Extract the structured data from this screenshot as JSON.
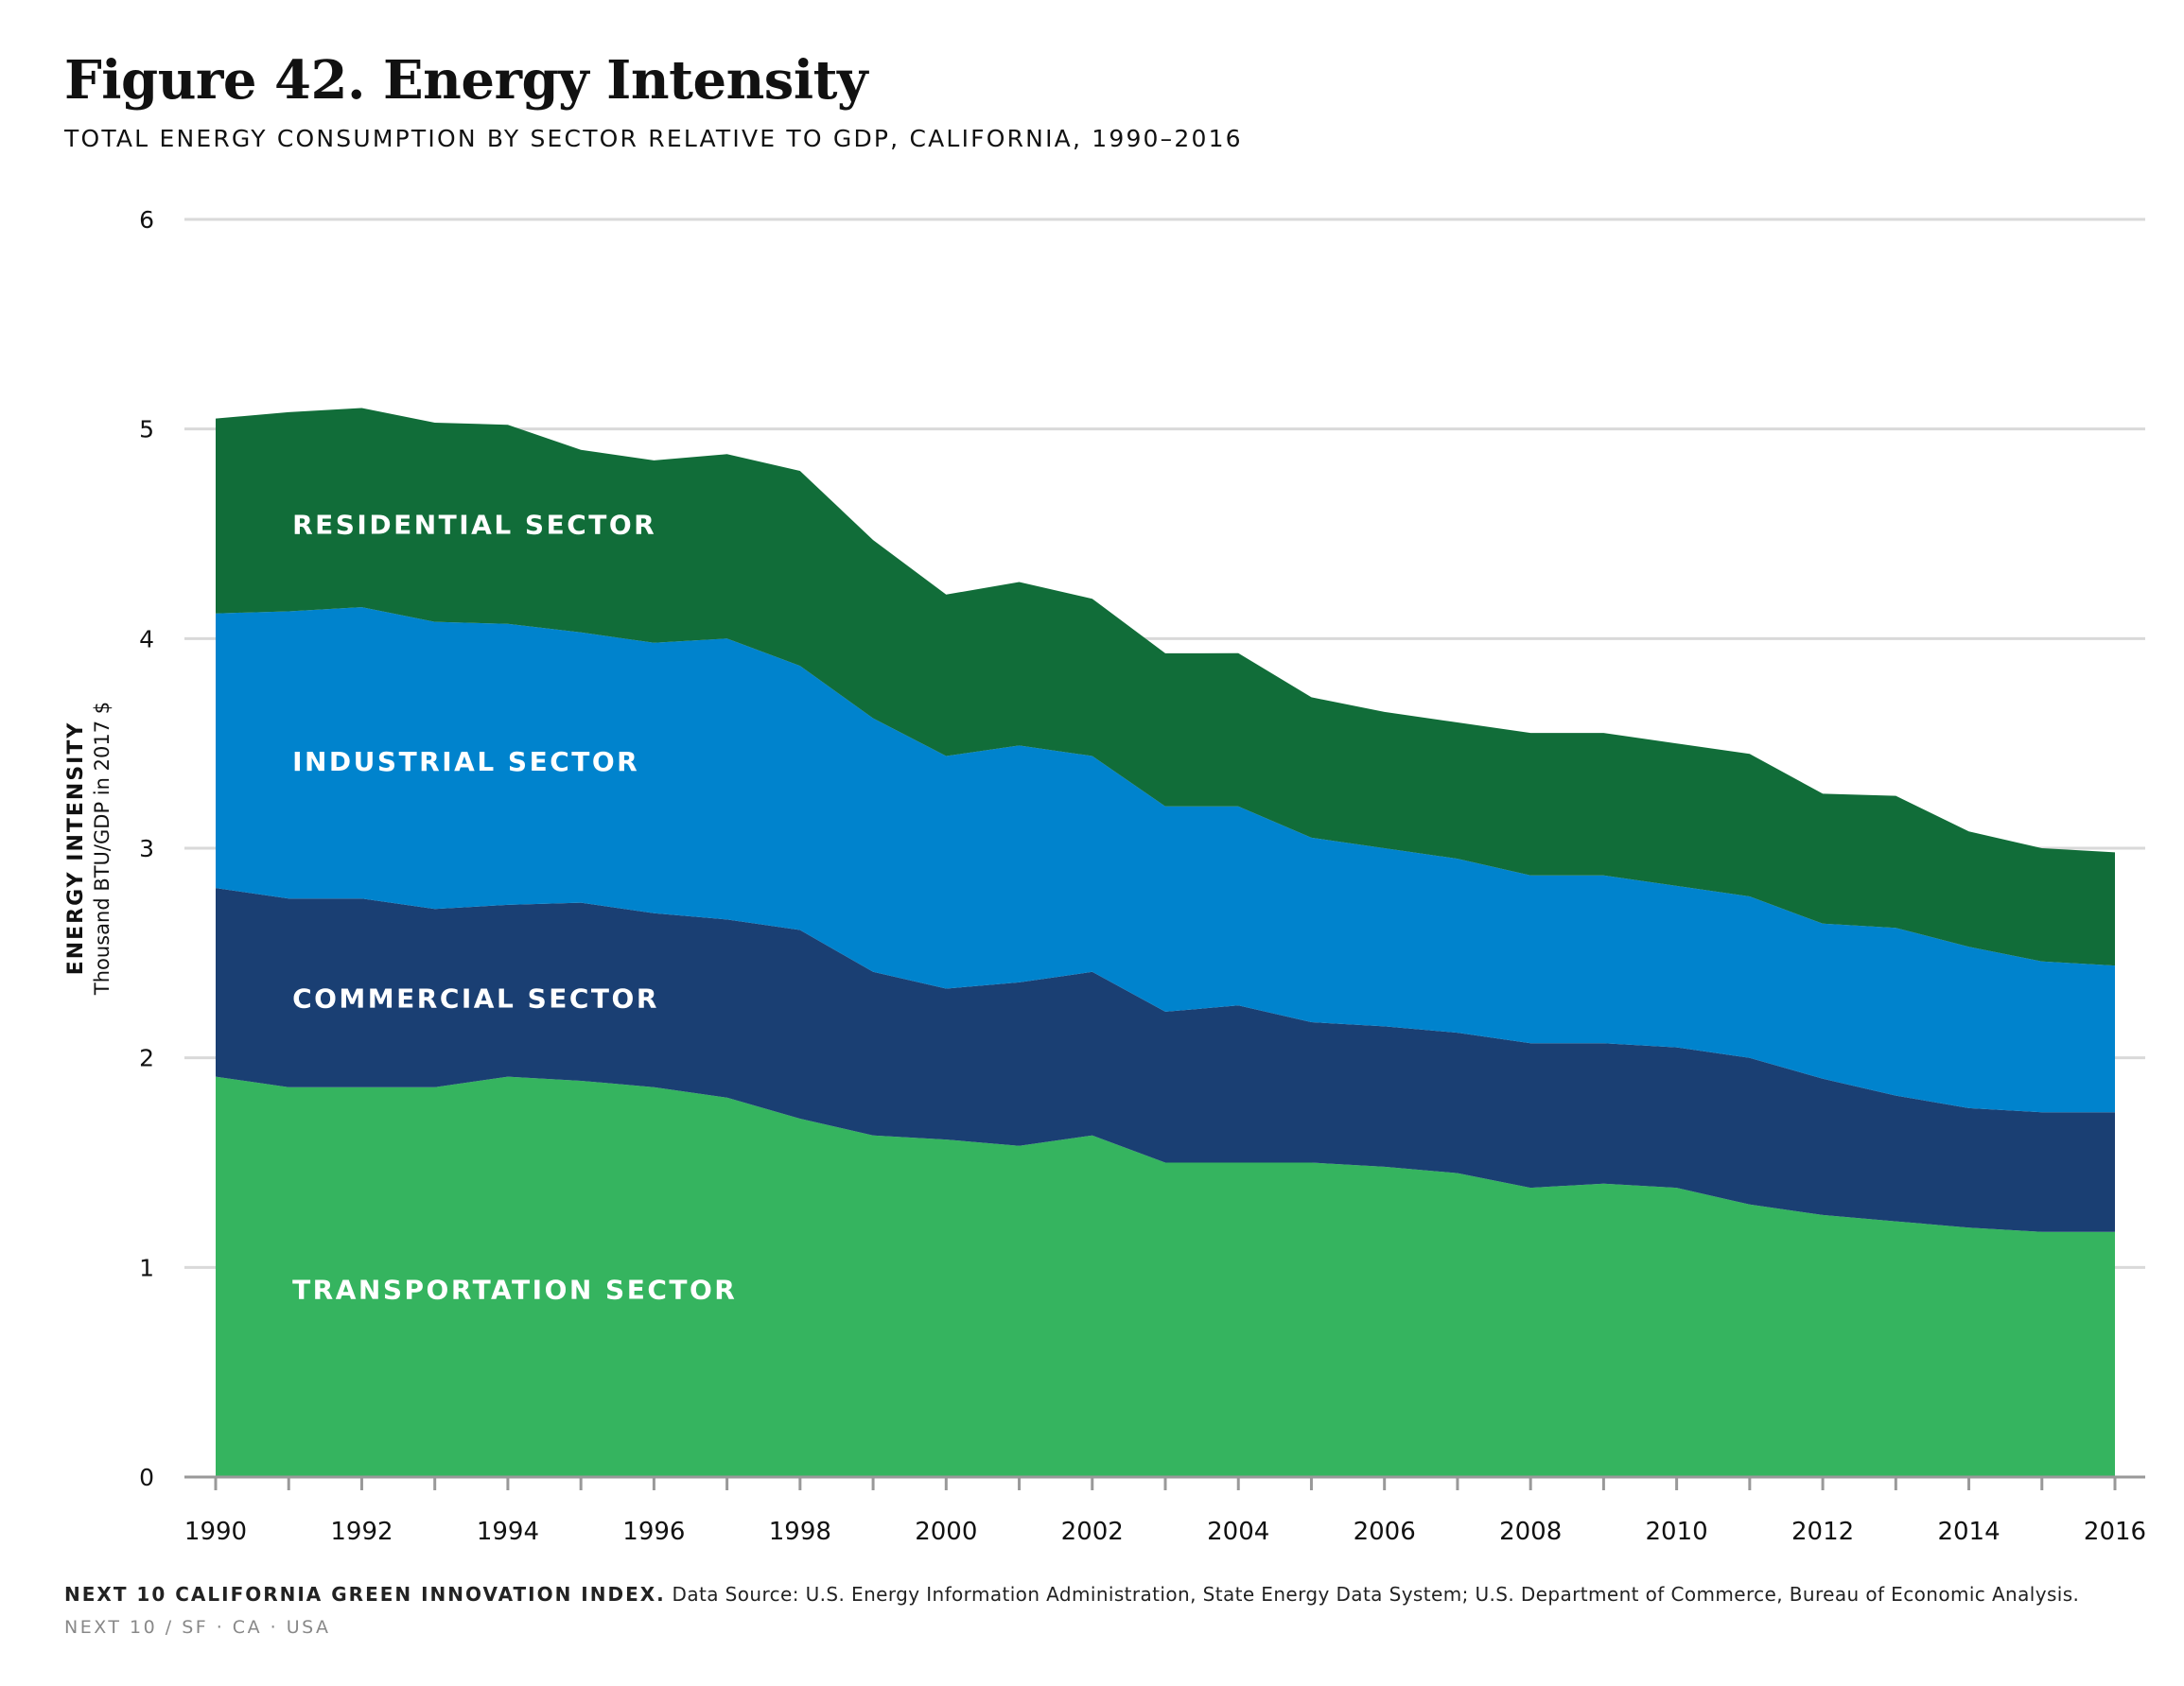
{
  "title": "Figure 42. Energy Intensity",
  "subtitle": "TOTAL ENERGY CONSUMPTION BY SECTOR RELATIVE TO GDP, CALIFORNIA, 1990–2016",
  "footer": {
    "org": "NEXT 10 CALIFORNIA GREEN INNOVATION INDEX.",
    "source": " Data Source: U.S. Energy Information Administration, State Energy Data System; U.S. Department of Commerce, Bureau of Economic Analysis.",
    "brand": "NEXT 10 / SF · CA · USA"
  },
  "colors": {
    "transportation": "#35b45f",
    "commercial": "#1a3f73",
    "industrial": "#0083cd",
    "residential": "#116d39",
    "grid": "#d9d9d9",
    "axis": "#999999"
  },
  "chart_data": {
    "type": "area",
    "stacked": true,
    "title": "Figure 42. Energy Intensity",
    "subtitle": "TOTAL ENERGY CONSUMPTION BY SECTOR RELATIVE TO GDP, CALIFORNIA, 1990–2016",
    "ylabel": "ENERGY INTENSITY",
    "ylabel_sub": "Thousand BTU/GDP in 2017 $",
    "ylim": [
      0,
      6
    ],
    "yticks": [
      "0",
      "1",
      "2",
      "3",
      "4",
      "5",
      "6"
    ],
    "grid": true,
    "x": [
      1990,
      1991,
      1992,
      1993,
      1994,
      1995,
      1996,
      1997,
      1998,
      1999,
      2000,
      2001,
      2002,
      2003,
      2004,
      2005,
      2006,
      2007,
      2008,
      2009,
      2010,
      2011,
      2012,
      2013,
      2014,
      2015,
      2016
    ],
    "xticks": [
      "1990",
      "1992",
      "1994",
      "1996",
      "1998",
      "2000",
      "2002",
      "2004",
      "2006",
      "2008",
      "2010",
      "2012",
      "2014",
      "2016"
    ],
    "series": [
      {
        "name": "TRANSPORTATION SECTOR",
        "color_key": "transportation",
        "values": [
          1.91,
          1.86,
          1.86,
          1.86,
          1.91,
          1.89,
          1.86,
          1.81,
          1.71,
          1.63,
          1.61,
          1.58,
          1.63,
          1.5,
          1.5,
          1.5,
          1.48,
          1.45,
          1.38,
          1.4,
          1.38,
          1.3,
          1.25,
          1.22,
          1.19,
          1.17,
          1.17
        ]
      },
      {
        "name": "COMMERCIAL SECTOR",
        "color_key": "commercial",
        "values": [
          0.9,
          0.9,
          0.9,
          0.85,
          0.82,
          0.85,
          0.83,
          0.85,
          0.9,
          0.78,
          0.72,
          0.78,
          0.78,
          0.72,
          0.75,
          0.67,
          0.67,
          0.67,
          0.69,
          0.67,
          0.67,
          0.7,
          0.65,
          0.6,
          0.57,
          0.57,
          0.57
        ]
      },
      {
        "name": "INDUSTRIAL SECTOR",
        "color_key": "industrial",
        "values": [
          1.31,
          1.37,
          1.39,
          1.37,
          1.34,
          1.29,
          1.29,
          1.34,
          1.26,
          1.21,
          1.11,
          1.13,
          1.03,
          0.98,
          0.95,
          0.88,
          0.85,
          0.83,
          0.8,
          0.8,
          0.77,
          0.77,
          0.74,
          0.8,
          0.77,
          0.72,
          0.7
        ]
      },
      {
        "name": "RESIDENTIAL SECTOR",
        "color_key": "residential",
        "values": [
          0.93,
          0.95,
          0.95,
          0.95,
          0.95,
          0.87,
          0.87,
          0.88,
          0.93,
          0.85,
          0.77,
          0.78,
          0.75,
          0.73,
          0.73,
          0.67,
          0.65,
          0.65,
          0.68,
          0.68,
          0.68,
          0.68,
          0.62,
          0.63,
          0.55,
          0.54,
          0.54
        ]
      }
    ],
    "labels": [
      {
        "text": "RESIDENTIAL SECTOR",
        "x": 1991,
        "y": 4.55
      },
      {
        "text": "INDUSTRIAL SECTOR",
        "x": 1991,
        "y": 3.42
      },
      {
        "text": "COMMERCIAL SECTOR",
        "x": 1991,
        "y": 2.29
      },
      {
        "text": "TRANSPORTATION SECTOR",
        "x": 1991,
        "y": 0.9
      }
    ]
  }
}
